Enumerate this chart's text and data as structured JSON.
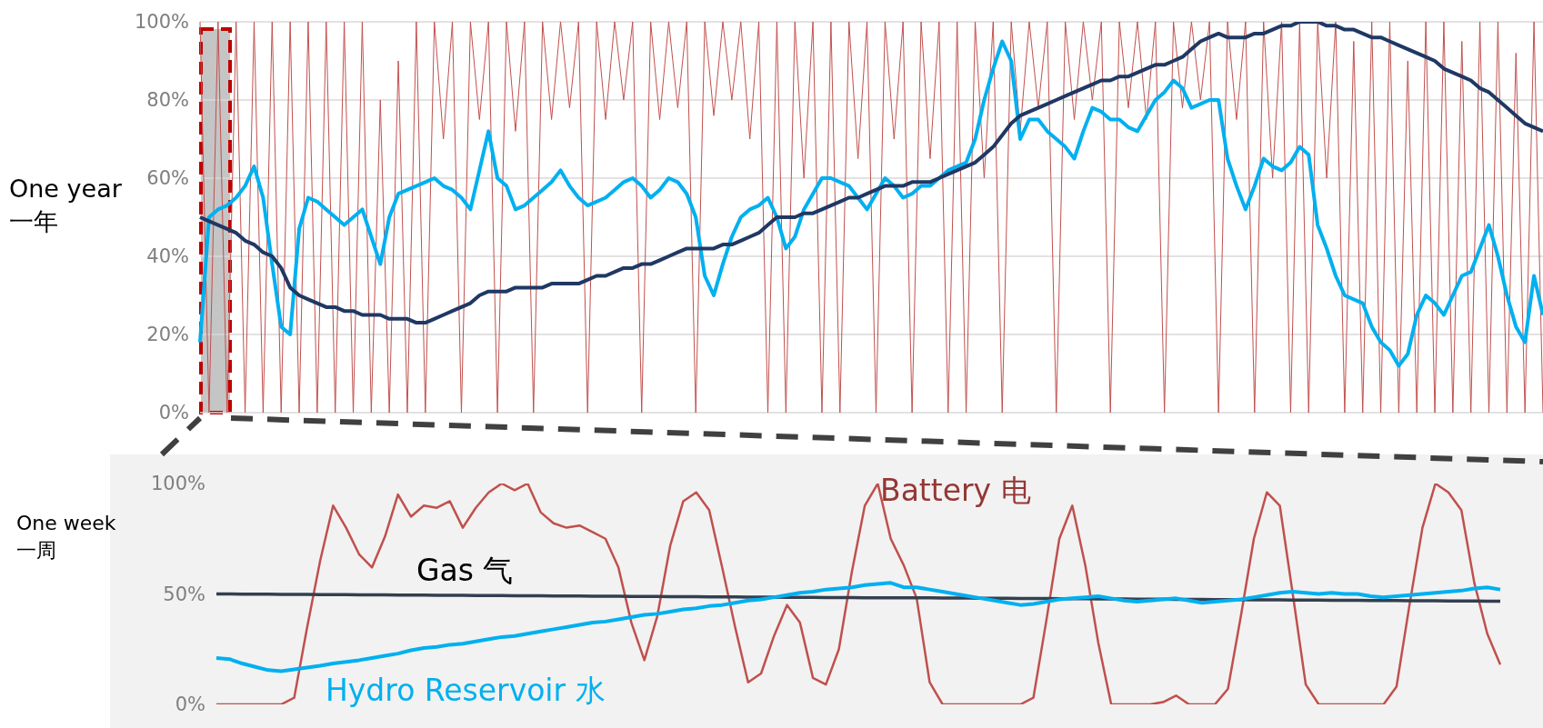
{
  "chart_data": [
    {
      "type": "line",
      "ylabel": "One year\n一年",
      "ylim": [
        0,
        100
      ],
      "yticks": [
        {
          "value": 0,
          "label": "0%"
        },
        {
          "value": 20,
          "label": "20%"
        },
        {
          "value": 40,
          "label": "40%"
        },
        {
          "value": 60,
          "label": "60%"
        },
        {
          "value": 80,
          "label": "80%"
        },
        {
          "value": 100,
          "label": "100%"
        }
      ],
      "grid": "y",
      "categories": [
        null,
        null,
        null,
        null,
        null,
        null,
        null,
        null,
        null,
        null,
        null,
        null,
        null,
        null,
        null,
        null,
        null,
        null,
        null,
        null,
        null,
        null,
        null,
        null,
        null,
        null,
        null,
        null,
        null,
        null,
        null,
        null,
        null,
        null,
        null,
        null,
        null,
        null,
        null,
        null,
        null,
        null,
        null,
        null,
        null,
        null,
        null,
        null,
        null,
        null,
        null,
        null,
        null,
        null,
        null,
        null,
        null,
        null,
        null,
        null,
        null,
        null,
        null,
        null,
        null,
        null,
        null,
        null,
        null,
        null,
        null,
        null,
        null,
        null,
        null,
        null,
        null,
        null,
        null,
        null,
        null,
        null,
        null,
        null,
        null,
        null,
        null,
        null,
        null,
        null,
        null,
        null,
        null,
        null,
        null,
        null,
        null,
        null,
        null,
        null,
        null,
        null,
        null,
        null,
        null,
        null,
        null,
        null,
        null,
        null,
        null,
        null,
        null,
        null,
        null,
        null,
        null,
        null,
        null,
        null,
        null,
        null,
        null,
        null,
        null,
        null,
        null,
        null,
        null,
        null,
        null,
        null,
        null,
        null,
        null,
        null,
        null,
        null,
        null,
        null,
        null,
        null,
        null,
        null,
        null,
        null,
        null,
        null,
        null,
        null
      ],
      "series": [
        {
          "color": "#c0504d",
          "values": [
            100,
            0,
            100,
            0,
            100,
            0,
            100,
            0,
            100,
            0,
            100,
            0,
            100,
            0,
            100,
            0,
            100,
            0,
            100,
            0,
            80,
            0,
            90,
            0,
            100,
            0,
            100,
            70,
            100,
            0,
            100,
            75,
            100,
            0,
            100,
            72,
            100,
            0,
            100,
            75,
            100,
            78,
            100,
            0,
            100,
            75,
            100,
            80,
            100,
            0,
            100,
            75,
            100,
            78,
            100,
            0,
            100,
            76,
            100,
            80,
            100,
            70,
            100,
            0,
            100,
            0,
            100,
            60,
            100,
            0,
            100,
            0,
            100,
            65,
            100,
            0,
            100,
            70,
            100,
            0,
            100,
            65,
            100,
            0,
            100,
            0,
            100,
            60,
            100,
            0,
            100,
            72,
            100,
            78,
            100,
            0,
            100,
            75,
            100,
            80,
            100,
            0,
            100,
            78,
            100,
            75,
            100,
            0,
            100,
            78,
            100,
            80,
            100,
            0,
            100,
            75,
            100,
            0,
            100,
            60,
            100,
            0,
            100,
            0,
            100,
            60,
            100,
            0,
            95,
            0,
            100,
            0,
            100,
            0,
            90,
            0,
            100,
            0,
            100,
            0,
            95,
            0,
            100,
            0,
            100,
            0,
            92,
            0,
            100,
            0
          ]
        },
        {
          "color": "#00b0f0",
          "values": [
            18,
            50,
            52,
            53,
            55,
            58,
            63,
            55,
            38,
            22,
            20,
            47,
            55,
            54,
            52,
            50,
            48,
            50,
            52,
            45,
            38,
            50,
            56,
            57,
            58,
            59,
            60,
            58,
            57,
            55,
            52,
            62,
            72,
            60,
            58,
            52,
            53,
            55,
            57,
            59,
            62,
            58,
            55,
            53,
            54,
            55,
            57,
            59,
            60,
            58,
            55,
            57,
            60,
            59,
            56,
            50,
            35,
            30,
            38,
            45,
            50,
            52,
            53,
            55,
            50,
            42,
            45,
            52,
            56,
            60,
            60,
            59,
            58,
            55,
            52,
            56,
            60,
            58,
            55,
            56,
            58,
            58,
            60,
            62,
            63,
            64,
            70,
            80,
            88,
            95,
            90,
            70,
            75,
            75,
            72,
            70,
            68,
            65,
            72,
            78,
            77,
            75,
            75,
            73,
            72,
            76,
            80,
            82,
            85,
            83,
            78,
            79,
            80,
            80,
            65,
            58,
            52,
            58,
            65,
            63,
            62,
            64,
            68,
            66,
            48,
            42,
            35,
            30,
            29,
            28,
            22,
            18,
            16,
            12,
            15,
            25,
            30,
            28,
            25,
            30,
            35,
            36,
            42,
            48,
            40,
            30,
            22,
            18,
            35,
            25
          ]
        },
        {
          "color": "#1f3864",
          "values": [
            50,
            49,
            48,
            47,
            46,
            44,
            43,
            41,
            40,
            37,
            32,
            30,
            29,
            28,
            27,
            27,
            26,
            26,
            25,
            25,
            25,
            24,
            24,
            24,
            23,
            23,
            24,
            25,
            26,
            27,
            28,
            30,
            31,
            31,
            31,
            32,
            32,
            32,
            32,
            33,
            33,
            33,
            33,
            34,
            35,
            35,
            36,
            37,
            37,
            38,
            38,
            39,
            40,
            41,
            42,
            42,
            42,
            42,
            43,
            43,
            44,
            45,
            46,
            48,
            50,
            50,
            50,
            51,
            51,
            52,
            53,
            54,
            55,
            55,
            56,
            57,
            58,
            58,
            58,
            59,
            59,
            59,
            60,
            61,
            62,
            63,
            64,
            66,
            68,
            71,
            74,
            76,
            77,
            78,
            79,
            80,
            81,
            82,
            83,
            84,
            85,
            85,
            86,
            86,
            87,
            88,
            89,
            89,
            90,
            91,
            93,
            95,
            96,
            97,
            96,
            96,
            96,
            97,
            97,
            98,
            99,
            99,
            100,
            100,
            100,
            99,
            99,
            98,
            98,
            97,
            96,
            96,
            95,
            94,
            93,
            92,
            91,
            90,
            88,
            87,
            86,
            85,
            83,
            82,
            80,
            78,
            76,
            74,
            73,
            72
          ]
        }
      ]
    },
    {
      "type": "line",
      "ylabel": "One week\n一周",
      "ylim": [
        0,
        100
      ],
      "yticks": [
        {
          "value": 0,
          "label": "0%"
        },
        {
          "value": 50,
          "label": "50%"
        },
        {
          "value": 100,
          "label": "100%"
        }
      ],
      "categories": [
        null,
        null,
        null,
        null,
        null,
        null,
        null,
        null,
        null,
        null,
        null,
        null,
        null,
        null,
        null,
        null,
        null,
        null,
        null,
        null,
        null,
        null,
        null,
        null,
        null,
        null,
        null,
        null,
        null,
        null,
        null,
        null,
        null,
        null,
        null,
        null,
        null,
        null,
        null,
        null,
        null,
        null,
        null,
        null,
        null,
        null,
        null,
        null,
        null,
        null,
        null,
        null,
        null,
        null,
        null,
        null,
        null,
        null,
        null,
        null,
        null,
        null,
        null,
        null,
        null,
        null,
        null,
        null,
        null,
        null,
        null,
        null,
        null,
        null,
        null,
        null,
        null,
        null,
        null,
        null,
        null,
        null,
        null,
        null,
        null,
        null,
        null,
        null,
        null,
        null,
        null,
        null,
        null,
        null,
        null,
        null,
        null,
        null,
        null,
        null
      ],
      "series": [
        {
          "name": "Battery 电",
          "color": "#c0504d",
          "values": [
            0,
            0,
            0,
            0,
            0,
            0,
            3,
            35,
            65,
            90,
            80,
            68,
            62,
            76,
            95,
            85,
            90,
            89,
            92,
            80,
            89,
            96,
            100,
            97,
            100,
            87,
            82,
            80,
            81,
            78,
            75,
            62,
            37,
            20,
            40,
            72,
            92,
            96,
            88,
            62,
            35,
            10,
            14,
            31,
            45,
            37,
            12,
            9,
            25,
            60,
            90,
            100,
            75,
            63,
            48,
            10,
            0,
            0,
            0,
            0,
            0,
            0,
            0,
            3,
            38,
            75,
            90,
            63,
            28,
            0,
            0,
            0,
            0,
            1,
            4,
            0,
            0,
            0,
            7,
            40,
            75,
            96,
            90,
            50,
            9,
            0,
            0,
            0,
            0,
            0,
            0,
            8,
            45,
            80,
            100,
            96,
            88,
            55,
            32,
            18
          ]
        },
        {
          "name": "Gas 气",
          "color": "#333f50",
          "values": [
            50,
            50,
            49.9,
            49.9,
            49.9,
            49.8,
            49.8,
            49.8,
            49.7,
            49.7,
            49.7,
            49.6,
            49.6,
            49.6,
            49.5,
            49.5,
            49.5,
            49.4,
            49.4,
            49.4,
            49.3,
            49.3,
            49.3,
            49.2,
            49.2,
            49.2,
            49.1,
            49.1,
            49.1,
            49,
            49,
            49,
            48.9,
            48.9,
            48.9,
            48.8,
            48.8,
            48.8,
            48.7,
            48.7,
            48.7,
            48.6,
            48.6,
            48.6,
            48.5,
            48.5,
            48.5,
            48.4,
            48.4,
            48.4,
            48.3,
            48.3,
            48.3,
            48.2,
            48.2,
            48.2,
            48.1,
            48.1,
            48.1,
            48,
            48,
            48,
            47.9,
            47.9,
            47.9,
            47.8,
            47.8,
            47.8,
            47.7,
            47.7,
            47.7,
            47.6,
            47.6,
            47.6,
            47.5,
            47.5,
            47.5,
            47.4,
            47.4,
            47.4,
            47.3,
            47.3,
            47.3,
            47.2,
            47.2,
            47.2,
            47.1,
            47.1,
            47.1,
            47,
            47,
            47,
            46.9,
            46.9,
            46.9,
            46.8,
            46.8,
            46.8,
            46.7,
            46.7
          ]
        },
        {
          "name": "Hydro Reservoir 水",
          "color": "#00b0f0",
          "values": [
            21,
            20.5,
            18.5,
            17,
            15.5,
            15,
            15.8,
            16.7,
            17.5,
            18.5,
            19.2,
            20,
            21,
            22,
            23,
            24.5,
            25.5,
            26,
            27,
            27.5,
            28.5,
            29.5,
            30.5,
            31,
            32,
            33,
            34,
            35,
            36,
            37,
            37.5,
            38.5,
            39.5,
            40.5,
            41,
            42,
            43,
            43.5,
            44.5,
            45,
            46,
            47,
            47.5,
            48.5,
            49.5,
            50.5,
            51,
            52,
            52.5,
            53,
            54,
            54.5,
            55,
            53,
            53,
            52,
            51,
            50,
            49,
            48,
            47,
            46,
            45,
            45.5,
            46.5,
            47.5,
            48,
            48.5,
            49,
            48,
            47,
            46.5,
            47,
            47.5,
            48,
            47,
            46,
            46.5,
            47,
            47.5,
            48.5,
            49.5,
            50.5,
            51,
            50.5,
            50,
            50.5,
            50,
            50,
            49,
            48.5,
            49,
            49.5,
            50,
            50.5,
            51,
            51.5,
            52.5,
            53,
            52
          ]
        }
      ]
    }
  ]
}
